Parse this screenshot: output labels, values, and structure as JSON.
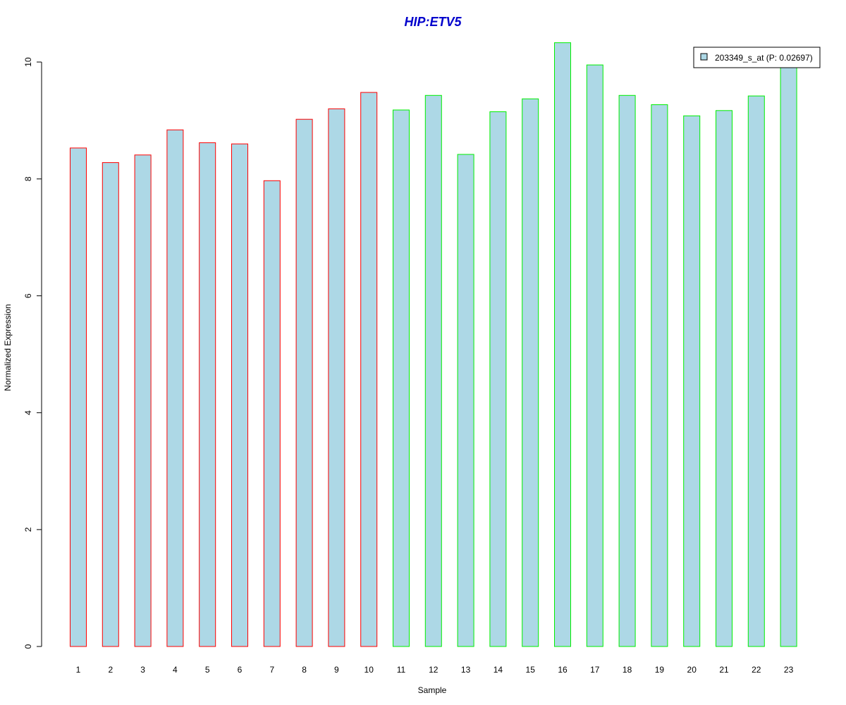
{
  "chart_data": {
    "type": "bar",
    "title": "HIP:ETV5",
    "xlabel": "Sample",
    "ylabel": "Normalized Expression",
    "categories": [
      "1",
      "2",
      "3",
      "4",
      "5",
      "6",
      "7",
      "8",
      "9",
      "10",
      "11",
      "12",
      "13",
      "14",
      "15",
      "16",
      "17",
      "18",
      "19",
      "20",
      "21",
      "22",
      "23"
    ],
    "series": [
      {
        "name": "203349_s_at (P: 0.02697)",
        "values": [
          8.53,
          8.28,
          8.41,
          8.84,
          8.62,
          8.6,
          7.97,
          9.02,
          9.2,
          9.48,
          9.18,
          9.43,
          8.42,
          9.15,
          9.37,
          10.33,
          9.95,
          9.43,
          9.27,
          9.08,
          9.17,
          9.42,
          9.93
        ]
      }
    ],
    "groups": [
      1,
      1,
      1,
      1,
      1,
      1,
      1,
      1,
      1,
      1,
      2,
      2,
      2,
      2,
      2,
      2,
      2,
      2,
      2,
      2,
      2,
      2,
      2
    ],
    "yticks": [
      "0",
      "2",
      "4",
      "6",
      "8",
      "10"
    ],
    "ylim": [
      0,
      10.4
    ],
    "grid": false,
    "legend_position": "top-right",
    "colors": {
      "title": "#0000cc",
      "bar_fill": "#add8e6",
      "group1_border": "#ff0000",
      "group2_border": "#00ee00",
      "axis": "#000000"
    }
  }
}
